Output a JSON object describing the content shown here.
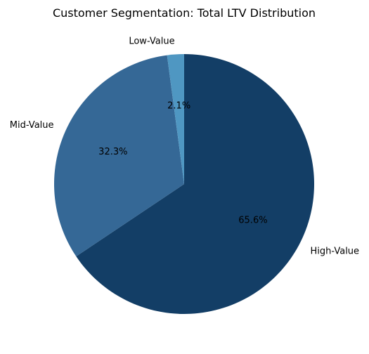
{
  "chart_data": {
    "type": "pie",
    "title": "Customer Segmentation: Total LTV Distribution",
    "categories": [
      "High-Value",
      "Mid-Value",
      "Low-Value"
    ],
    "values": [
      65.6,
      32.3,
      2.1
    ],
    "value_labels": [
      "65.6%",
      "32.3%",
      "2.1%"
    ],
    "colors": [
      "#133e66",
      "#356896",
      "#4f97c2"
    ],
    "start_angle_deg": 90,
    "direction": "clockwise",
    "legend": "none"
  }
}
